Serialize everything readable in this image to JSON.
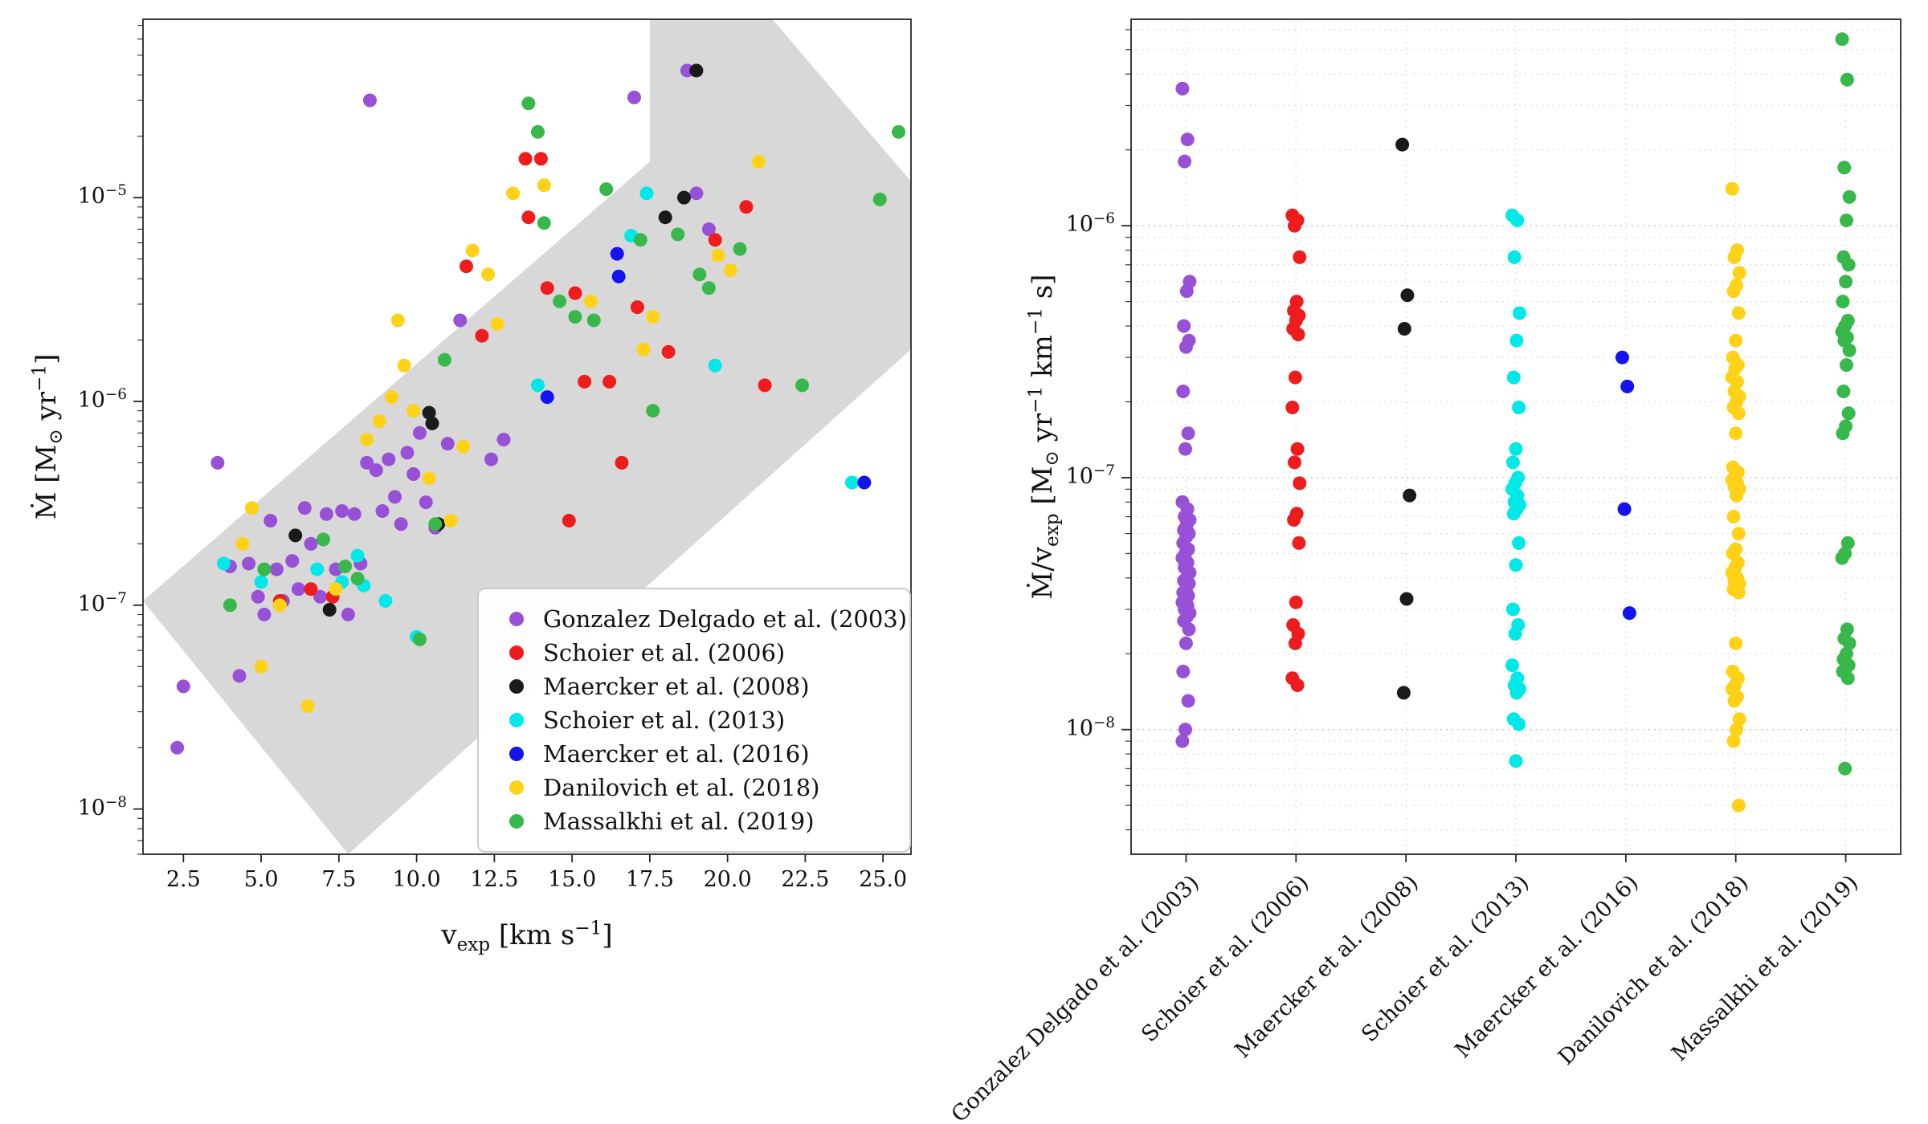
{
  "figure": {
    "background": "#ffffff",
    "surveys": [
      "Gonzalez Delgado et al. (2003)",
      "Schoier et al. (2006)",
      "Maercker et al. (2008)",
      "Schoier et al. (2013)",
      "Maercker et al. (2016)",
      "Danilovich et al. (2018)",
      "Massalkhi et al. (2019)"
    ],
    "colors": {
      "gonzalez2003": "#9850d6",
      "schoier2006": "#ee1c1c",
      "maercker2008": "#1a1a1a",
      "schoier2013": "#00e8e8",
      "maercker2016": "#1414f0",
      "danilovich2018": "#ffd117",
      "massalkhi2019": "#38b84a",
      "band": "#d8d8d8",
      "axes": "#262626"
    }
  },
  "chart_data": [
    {
      "type": "scatter",
      "title": "",
      "xlabel": "v_{exp}  [km s^{−1}]",
      "ylabel": "Ṁ  [M_{⊙} yr^{−1}]",
      "xlim": [
        1.2,
        25.9
      ],
      "ylim_log": [
        6e-09,
        7.5e-05
      ],
      "xticks": [
        2.5,
        5.0,
        7.5,
        10.0,
        12.5,
        15.0,
        17.5,
        20.0,
        22.5,
        25.0
      ],
      "xtick_labels": [
        "2.5",
        "5.0",
        "7.5",
        "10.0",
        "12.5",
        "15.0",
        "17.5",
        "20.0",
        "22.5",
        "25.0"
      ],
      "yticks": [
        1e-08,
        1e-07,
        1e-06,
        1e-05
      ],
      "ytick_labels": [
        "10^{−8}",
        "10^{−7}",
        "10^{−6}",
        "10^{−5}"
      ],
      "grid": false,
      "legend_position": "lower right",
      "band_polygon": [
        [
          1.2,
          1.05e-07
        ],
        [
          17.5,
          1.5e-05
        ],
        [
          17.5,
          9e-05
        ],
        [
          21.0,
          9e-05
        ],
        [
          25.9,
          1.2e-05
        ],
        [
          25.9,
          1.8e-06
        ],
        [
          7.8,
          6e-09
        ]
      ],
      "series": [
        {
          "name": "Gonzalez Delgado et al. (2003)",
          "color": "#9850d6",
          "points": [
            [
              2.3,
              2e-08
            ],
            [
              2.5,
              4e-08
            ],
            [
              3.6,
              5e-07
            ],
            [
              4.0,
              1.55e-07
            ],
            [
              4.3,
              4.5e-08
            ],
            [
              4.6,
              1.6e-07
            ],
            [
              4.9,
              1.1e-07
            ],
            [
              5.1,
              9e-08
            ],
            [
              5.3,
              2.6e-07
            ],
            [
              5.5,
              1.5e-07
            ],
            [
              5.7,
              1.05e-07
            ],
            [
              6.0,
              1.65e-07
            ],
            [
              6.2,
              1.2e-07
            ],
            [
              6.4,
              3e-07
            ],
            [
              6.6,
              2e-07
            ],
            [
              6.9,
              1.1e-07
            ],
            [
              7.1,
              2.8e-07
            ],
            [
              7.4,
              1.5e-07
            ],
            [
              7.6,
              2.9e-07
            ],
            [
              7.8,
              9e-08
            ],
            [
              8.0,
              2.8e-07
            ],
            [
              8.2,
              1.6e-07
            ],
            [
              8.4,
              5e-07
            ],
            [
              8.5,
              3e-05
            ],
            [
              8.7,
              4.6e-07
            ],
            [
              8.9,
              2.9e-07
            ],
            [
              9.1,
              5.2e-07
            ],
            [
              9.3,
              3.4e-07
            ],
            [
              9.5,
              2.5e-07
            ],
            [
              9.7,
              5.6e-07
            ],
            [
              9.9,
              4.4e-07
            ],
            [
              10.1,
              7e-07
            ],
            [
              10.3,
              3.2e-07
            ],
            [
              10.6,
              2.4e-07
            ],
            [
              11.0,
              6.2e-07
            ],
            [
              11.4,
              2.5e-06
            ],
            [
              12.4,
              5.2e-07
            ],
            [
              12.8,
              6.5e-07
            ],
            [
              17.0,
              3.1e-05
            ],
            [
              18.7,
              4.2e-05
            ],
            [
              19.0,
              1.05e-05
            ],
            [
              19.4,
              7e-06
            ]
          ]
        },
        {
          "name": "Schoier et al. (2006)",
          "color": "#ee1c1c",
          "points": [
            [
              5.6,
              1.05e-07
            ],
            [
              6.6,
              1.2e-07
            ],
            [
              7.3,
              1.1e-07
            ],
            [
              11.6,
              4.6e-06
            ],
            [
              12.1,
              2.1e-06
            ],
            [
              13.5,
              1.55e-05
            ],
            [
              14.0,
              1.55e-05
            ],
            [
              13.6,
              8e-06
            ],
            [
              14.2,
              3.6e-06
            ],
            [
              14.9,
              2.6e-07
            ],
            [
              15.1,
              3.4e-06
            ],
            [
              15.4,
              1.25e-06
            ],
            [
              16.2,
              1.25e-06
            ],
            [
              16.6,
              5e-07
            ],
            [
              17.1,
              2.9e-06
            ],
            [
              18.1,
              1.75e-06
            ],
            [
              19.6,
              6.2e-06
            ],
            [
              20.6,
              9e-06
            ],
            [
              21.2,
              1.2e-06
            ]
          ]
        },
        {
          "name": "Maercker et al. (2008)",
          "color": "#1a1a1a",
          "points": [
            [
              6.1,
              2.2e-07
            ],
            [
              7.2,
              9.5e-08
            ],
            [
              10.4,
              8.8e-07
            ],
            [
              10.5,
              7.8e-07
            ],
            [
              10.7,
              2.5e-07
            ],
            [
              18.0,
              8e-06
            ],
            [
              18.6,
              1e-05
            ],
            [
              19.0,
              4.2e-05
            ]
          ]
        },
        {
          "name": "Schoier et al. (2013)",
          "color": "#00e8e8",
          "points": [
            [
              3.8,
              1.6e-07
            ],
            [
              5.0,
              1.3e-07
            ],
            [
              6.8,
              1.5e-07
            ],
            [
              7.6,
              1.3e-07
            ],
            [
              8.1,
              1.75e-07
            ],
            [
              8.3,
              1.25e-07
            ],
            [
              9.0,
              1.05e-07
            ],
            [
              10.0,
              7e-08
            ],
            [
              13.9,
              1.2e-06
            ],
            [
              16.9,
              6.5e-06
            ],
            [
              17.4,
              1.05e-05
            ],
            [
              19.6,
              1.5e-06
            ],
            [
              24.0,
              4e-07
            ]
          ]
        },
        {
          "name": "Maercker et al. (2016)",
          "color": "#1414f0",
          "points": [
            [
              16.45,
              5.3e-06
            ],
            [
              16.5,
              4.1e-06
            ],
            [
              14.2,
              1.05e-06
            ],
            [
              24.4,
              4e-07
            ]
          ]
        },
        {
          "name": "Danilovich et al. (2018)",
          "color": "#ffd117",
          "points": [
            [
              4.4,
              2e-07
            ],
            [
              4.7,
              3e-07
            ],
            [
              5.0,
              5e-08
            ],
            [
              5.6,
              1e-07
            ],
            [
              6.5,
              3.2e-08
            ],
            [
              7.4,
              1.2e-07
            ],
            [
              8.4,
              6.5e-07
            ],
            [
              8.8,
              8e-07
            ],
            [
              9.2,
              1.05e-06
            ],
            [
              9.4,
              2.5e-06
            ],
            [
              9.6,
              1.5e-06
            ],
            [
              9.9,
              9e-07
            ],
            [
              10.4,
              4.2e-07
            ],
            [
              11.1,
              2.6e-07
            ],
            [
              11.5,
              6e-07
            ],
            [
              11.8,
              5.5e-06
            ],
            [
              12.3,
              4.2e-06
            ],
            [
              12.6,
              2.4e-06
            ],
            [
              13.1,
              1.05e-05
            ],
            [
              14.1,
              1.15e-05
            ],
            [
              15.6,
              3.1e-06
            ],
            [
              17.3,
              1.8e-06
            ],
            [
              17.6,
              2.6e-06
            ],
            [
              19.7,
              5.2e-06
            ],
            [
              20.1,
              4.4e-06
            ],
            [
              21.0,
              1.5e-05
            ]
          ]
        },
        {
          "name": "Massalkhi et al. (2019)",
          "color": "#38b84a",
          "points": [
            [
              4.0,
              1e-07
            ],
            [
              5.1,
              1.5e-07
            ],
            [
              7.0,
              2.1e-07
            ],
            [
              7.7,
              1.55e-07
            ],
            [
              8.1,
              1.35e-07
            ],
            [
              10.1,
              6.8e-08
            ],
            [
              10.6,
              2.5e-07
            ],
            [
              13.6,
              2.9e-05
            ],
            [
              13.9,
              2.1e-05
            ],
            [
              14.1,
              7.5e-06
            ],
            [
              14.6,
              3.1e-06
            ],
            [
              15.1,
              2.6e-06
            ],
            [
              15.7,
              2.5e-06
            ],
            [
              16.1,
              1.1e-05
            ],
            [
              17.2,
              6.2e-06
            ],
            [
              17.6,
              9e-07
            ],
            [
              18.4,
              6.6e-06
            ],
            [
              19.1,
              4.2e-06
            ],
            [
              19.4,
              3.6e-06
            ],
            [
              20.4,
              5.6e-06
            ],
            [
              22.4,
              1.2e-06
            ],
            [
              24.9,
              9.8e-06
            ],
            [
              25.5,
              2.1e-05
            ],
            [
              10.9,
              1.6e-06
            ]
          ]
        }
      ]
    },
    {
      "type": "strip",
      "title": "",
      "ylabel": "Ṁ/v_{exp}  [M_{⊙} yr^{−1} km^{−1} s]",
      "categories": [
        "Gonzalez Delgado et al. (2003)",
        "Schoier et al. (2006)",
        "Maercker et al. (2008)",
        "Schoier et al. (2013)",
        "Maercker et al. (2016)",
        "Danilovich et al. (2018)",
        "Massalkhi et al. (2019)"
      ],
      "ylim_log": [
        3.2e-09,
        6.6e-06
      ],
      "yticks": [
        1e-08,
        1e-07,
        1e-06
      ],
      "ytick_labels": [
        "10^{−8}",
        "10^{−7}",
        "10^{−6}"
      ],
      "grid": true,
      "series": [
        {
          "name": "Gonzalez Delgado et al. (2003)",
          "color": "#9850d6",
          "values": [
            3.5e-06,
            2.2e-06,
            1.8e-06,
            6e-07,
            5.5e-07,
            4e-07,
            3.5e-07,
            3.3e-07,
            2.2e-07,
            1.5e-07,
            1.3e-07,
            8e-08,
            7.5e-08,
            7e-08,
            6.8e-08,
            6.5e-08,
            6.2e-08,
            6e-08,
            5.8e-08,
            5.5e-08,
            5.2e-08,
            5e-08,
            4.8e-08,
            4.6e-08,
            4.4e-08,
            4.2e-08,
            4e-08,
            3.9e-08,
            3.8e-08,
            3.6e-08,
            3.5e-08,
            3.4e-08,
            3.3e-08,
            3.2e-08,
            3.1e-08,
            3e-08,
            2.9e-08,
            2.8e-08,
            2.7e-08,
            2.5e-08,
            2.2e-08,
            1.7e-08,
            1.3e-08,
            1e-08,
            9e-09
          ]
        },
        {
          "name": "Schoier et al. (2006)",
          "color": "#ee1c1c",
          "values": [
            1.1e-06,
            1.05e-06,
            1e-06,
            7.5e-07,
            5e-07,
            4.6e-07,
            4.4e-07,
            4.2e-07,
            3.9e-07,
            3.7e-07,
            2.5e-07,
            1.9e-07,
            1.3e-07,
            1.15e-07,
            9.5e-08,
            7.2e-08,
            6.8e-08,
            5.5e-08,
            3.2e-08,
            2.6e-08,
            2.4e-08,
            2.2e-08,
            1.6e-08,
            1.5e-08
          ]
        },
        {
          "name": "Maercker et al. (2008)",
          "color": "#1a1a1a",
          "values": [
            2.1e-06,
            5.3e-07,
            3.9e-07,
            8.5e-08,
            3.3e-08,
            1.4e-08
          ]
        },
        {
          "name": "Schoier et al. (2013)",
          "color": "#00e8e8",
          "values": [
            1.1e-06,
            1.05e-06,
            7.5e-07,
            4.5e-07,
            3.5e-07,
            2.5e-07,
            1.9e-07,
            1.3e-07,
            1.15e-07,
            1e-07,
            9.5e-08,
            9e-08,
            8.5e-08,
            8e-08,
            7.8e-08,
            7.5e-08,
            7.2e-08,
            5.5e-08,
            4.5e-08,
            3e-08,
            2.6e-08,
            2.4e-08,
            1.8e-08,
            1.6e-08,
            1.5e-08,
            1.45e-08,
            1.4e-08,
            1.1e-08,
            1.05e-08,
            7.5e-09
          ]
        },
        {
          "name": "Maercker et al. (2016)",
          "color": "#1414f0",
          "values": [
            3e-07,
            2.3e-07,
            7.5e-08,
            2.9e-08
          ]
        },
        {
          "name": "Danilovich et al. (2018)",
          "color": "#ffd117",
          "values": [
            1.4e-06,
            8e-07,
            7.5e-07,
            6.5e-07,
            5.8e-07,
            5.5e-07,
            4.5e-07,
            3.5e-07,
            3e-07,
            2.8e-07,
            2.7e-07,
            2.5e-07,
            2.4e-07,
            2.2e-07,
            2.1e-07,
            2e-07,
            1.9e-07,
            1.8e-07,
            1.5e-07,
            1.1e-07,
            1.05e-07,
            1e-07,
            9.8e-08,
            9.5e-08,
            9.2e-08,
            9e-08,
            8.5e-08,
            7e-08,
            6e-08,
            5.2e-08,
            5e-08,
            4.6e-08,
            4.4e-08,
            4.2e-08,
            4e-08,
            3.9e-08,
            3.8e-08,
            3.7e-08,
            3.6e-08,
            3.5e-08,
            2.2e-08,
            1.7e-08,
            1.6e-08,
            1.5e-08,
            1.45e-08,
            1.35e-08,
            1.3e-08,
            1.1e-08,
            1e-08,
            9e-09,
            5e-09
          ]
        },
        {
          "name": "Massalkhi et al. (2019)",
          "color": "#38b84a",
          "values": [
            5.5e-06,
            3.8e-06,
            1.7e-06,
            1.3e-06,
            1.05e-06,
            7.5e-07,
            7e-07,
            6e-07,
            5e-07,
            4.2e-07,
            4e-07,
            3.8e-07,
            3.6e-07,
            3.5e-07,
            3.2e-07,
            2.8e-07,
            2.2e-07,
            1.8e-07,
            1.6e-07,
            1.5e-07,
            5.5e-08,
            5e-08,
            4.8e-08,
            2.5e-08,
            2.3e-08,
            2.2e-08,
            2e-08,
            1.9e-08,
            1.8e-08,
            1.75e-08,
            1.7e-08,
            1.6e-08,
            7e-09
          ]
        }
      ]
    }
  ]
}
